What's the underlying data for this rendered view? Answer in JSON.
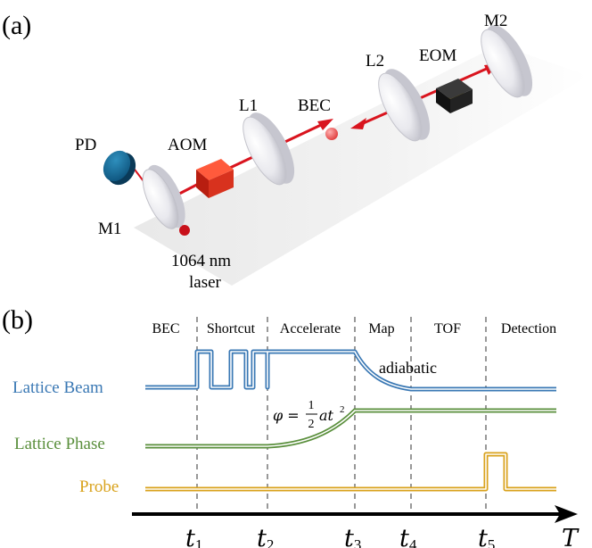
{
  "panel_a": {
    "label": "(a)",
    "components": {
      "pd": "PD",
      "aom": "AOM",
      "l1": "L1",
      "bec": "BEC",
      "l2": "L2",
      "eom": "EOM",
      "m2": "M2",
      "m1": "M1",
      "laser_line1": "1064 nm",
      "laser_line2": "laser"
    }
  },
  "panel_b": {
    "label": "(b)",
    "stages": [
      "BEC",
      "Shortcut",
      "Accelerate",
      "Map",
      "TOF",
      "Detection"
    ],
    "signals": {
      "lattice_beam": "Lattice Beam",
      "lattice_phase": "Lattice Phase",
      "probe": "Probe"
    },
    "annotations": {
      "adiabatic": "adiabatic",
      "phase_lhs": "φ =",
      "phase_num": "1",
      "phase_den": "2",
      "phase_rhs": "at",
      "phase_exp": "2"
    },
    "time_axis": {
      "marker": "t",
      "subscripts": [
        "1",
        "2",
        "3",
        "4",
        "5"
      ],
      "end_label": "T"
    },
    "colors": {
      "lattice_beam": "#3a78b4",
      "lattice_phase": "#5a8f3c",
      "probe": "#d9a21c",
      "laser": "#d9141e"
    }
  }
}
